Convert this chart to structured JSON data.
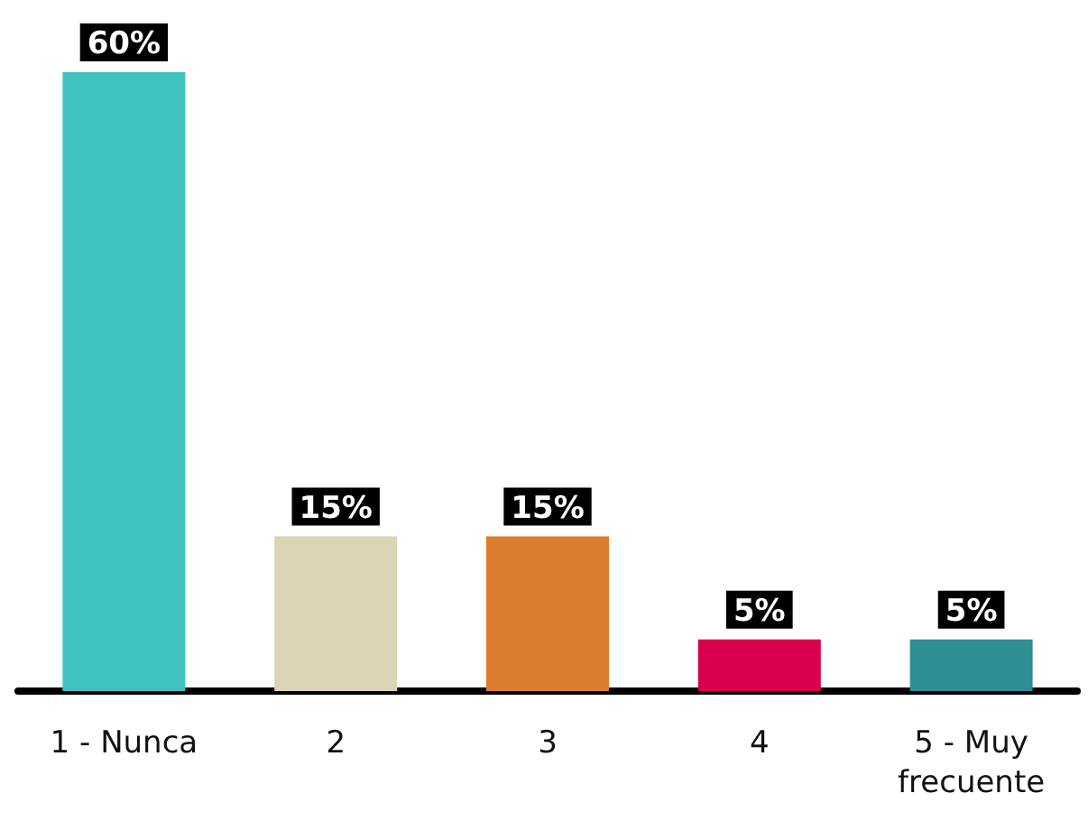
{
  "chart_data": {
    "type": "bar",
    "categories": [
      "1 - Nunca",
      "2",
      "3",
      "4",
      "5 - Muy\nfrecuente"
    ],
    "values": [
      60,
      15,
      15,
      5,
      5
    ],
    "colors": [
      "#40c2c0",
      "#d9d4b4",
      "#dc7c2e",
      "#d8004f",
      "#2e8e93"
    ],
    "value_labels": [
      "60%",
      "15%",
      "15%",
      "5%",
      "5%"
    ]
  }
}
